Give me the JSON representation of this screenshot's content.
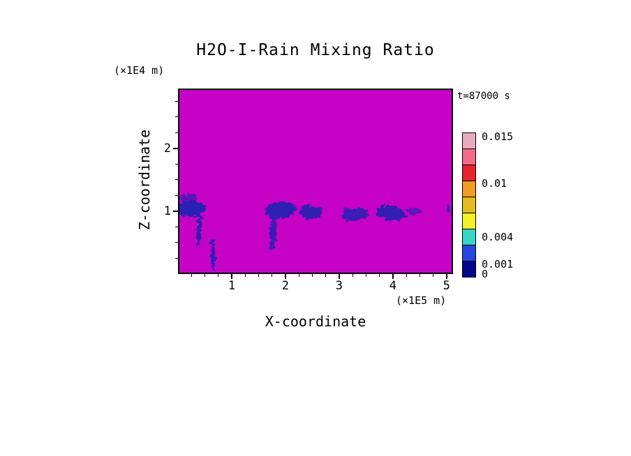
{
  "chart_data": {
    "type": "heatmap",
    "title": "H2O-I-Rain Mixing Ratio",
    "xlabel": "X-coordinate",
    "ylabel": "Z-coordinate",
    "x_units_label": "(×1E5 m)",
    "y_units_label": "(×1E4 m)",
    "time_label": "t=87000 s",
    "xlim": [
      0,
      5.12
    ],
    "ylim": [
      0,
      2.95
    ],
    "x_major_ticks": [
      1,
      2,
      3,
      4,
      5
    ],
    "x_minor_step": 0.25,
    "y_major_ticks": [
      1,
      2
    ],
    "y_minor_step": 0.25,
    "grid": false,
    "background_color": "#C602C6",
    "feature_color": "#2424B2",
    "colorbar": {
      "position": "right",
      "colors_top_to_bottom": [
        "#E9A9C3",
        "#F26C8A",
        "#E8232B",
        "#F29B26",
        "#E3BC1E",
        "#F2F226",
        "#38D5C6",
        "#2547E0",
        "#05058E"
      ],
      "labels": [
        {
          "value": "0.015",
          "frac_from_top": 0.029
        },
        {
          "value": "0.01",
          "frac_from_top": 0.351
        },
        {
          "value": "0.004",
          "frac_from_top": 0.721
        },
        {
          "value": "0.001",
          "frac_from_top": 0.909
        },
        {
          "value": "0",
          "frac_from_top": 0.976
        }
      ]
    },
    "features": [
      {
        "x": 0.2,
        "z": 1.04,
        "rx": 0.3,
        "rz": 0.13,
        "rot": 0,
        "opacity": 0.95
      },
      {
        "x": 0.16,
        "z": 1.2,
        "rx": 0.2,
        "rz": 0.05,
        "rot": -5,
        "opacity": 0.65
      },
      {
        "x": 0.37,
        "z": 0.7,
        "rx": 0.045,
        "rz": 0.26,
        "rot": 3,
        "opacity": 0.9
      },
      {
        "x": 0.63,
        "z": 0.28,
        "rx": 0.04,
        "rz": 0.27,
        "rot": -2,
        "opacity": 0.95
      },
      {
        "x": 1.88,
        "z": 1.0,
        "rx": 0.29,
        "rz": 0.14,
        "rot": -6,
        "opacity": 0.92
      },
      {
        "x": 1.76,
        "z": 0.6,
        "rx": 0.06,
        "rz": 0.26,
        "rot": 4,
        "opacity": 0.85
      },
      {
        "x": 2.1,
        "z": 1.06,
        "rx": 0.1,
        "rz": 0.06,
        "rot": 10,
        "opacity": 0.6
      },
      {
        "x": 2.48,
        "z": 0.97,
        "rx": 0.21,
        "rz": 0.11,
        "rot": 6,
        "opacity": 0.9
      },
      {
        "x": 3.3,
        "z": 0.93,
        "rx": 0.25,
        "rz": 0.1,
        "rot": -7,
        "opacity": 0.85
      },
      {
        "x": 3.15,
        "z": 1.02,
        "rx": 0.08,
        "rz": 0.05,
        "rot": 0,
        "opacity": 0.55
      },
      {
        "x": 3.98,
        "z": 0.97,
        "rx": 0.28,
        "rz": 0.12,
        "rot": 9,
        "opacity": 0.9
      },
      {
        "x": 4.42,
        "z": 0.99,
        "rx": 0.13,
        "rz": 0.06,
        "rot": 5,
        "opacity": 0.65
      },
      {
        "x": 5.06,
        "z": 1.01,
        "rx": 0.05,
        "rz": 0.07,
        "rot": 0,
        "opacity": 0.8
      }
    ]
  }
}
